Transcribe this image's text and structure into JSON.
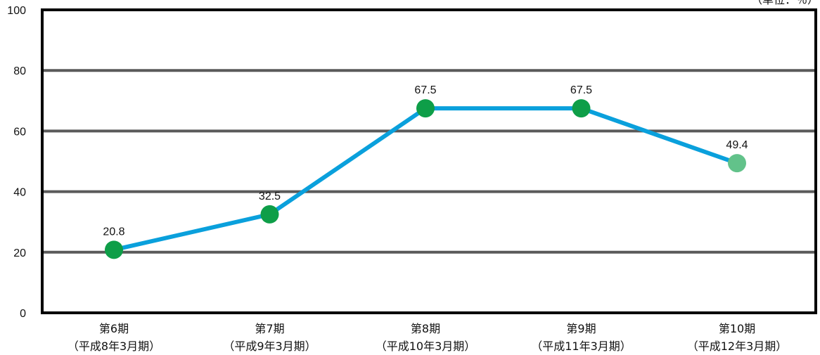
{
  "chart_data": {
    "type": "line",
    "unit": "（単位：％）",
    "categories": [
      [
        "第6期",
        "（平成8年3月期）"
      ],
      [
        "第7期",
        "（平成9年3月期）"
      ],
      [
        "第8期",
        "（平成10年3月期）"
      ],
      [
        "第9期",
        "（平成11年3月期）"
      ],
      [
        "第10期",
        "（平成12年3月期）"
      ]
    ],
    "values": [
      20.8,
      32.5,
      67.5,
      67.5,
      49.4
    ],
    "value_labels": [
      "20.8",
      "32.5",
      "67.5",
      "67.5",
      "49.4"
    ],
    "ylim": [
      0,
      100
    ],
    "yticks": [
      0,
      20,
      40,
      60,
      80,
      100
    ],
    "grid": true,
    "colors": {
      "line": "#0aa0dc",
      "marker": "#0e9e48",
      "marker_last": "#62c28a",
      "grid": "#5a5a5a",
      "frame": "#000000"
    }
  }
}
